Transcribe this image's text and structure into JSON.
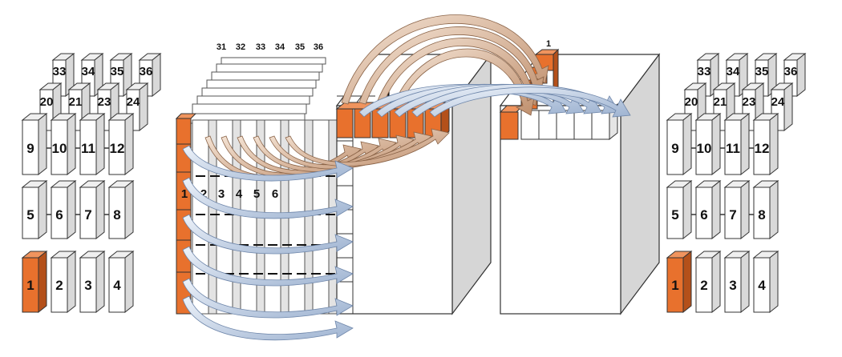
{
  "colors": {
    "highlight": "#E8712D",
    "highlight_dark": "#B4501A",
    "block_face": "#FFFFFF",
    "block_side": "#D9D9D9",
    "block_top": "#EFEFEF",
    "outline": "#333333",
    "arrow_brown": "#C79A7B",
    "arrow_brown_light": "#F0DCCB",
    "arrow_blue": "#A9BCD6",
    "arrow_blue_light": "#E6EEF8"
  },
  "left_cluster": {
    "row3_labels": [
      "33",
      "34",
      "35",
      "36"
    ],
    "row2_labels": [
      "20",
      "21",
      "23",
      "24"
    ],
    "row1_labels": [
      "9",
      "10",
      "11",
      "12"
    ],
    "row0_labels": [
      "5",
      "6",
      "7",
      "8"
    ],
    "rowA_labels": [
      "1",
      "2",
      "3",
      "4"
    ]
  },
  "right_cluster": {
    "row3_labels": [
      "33",
      "34",
      "35",
      "36"
    ],
    "row2_labels": [
      "20",
      "21",
      "23",
      "24"
    ],
    "row1_labels": [
      "9",
      "10",
      "11",
      "12"
    ],
    "row0_labels": [
      "5",
      "6",
      "7",
      "8"
    ],
    "rowA_labels": [
      "1",
      "2",
      "3",
      "4"
    ]
  },
  "grid_block": {
    "top_labels": [
      "31",
      "32",
      "33",
      "34",
      "35",
      "36"
    ],
    "front_labels": [
      "1",
      "2",
      "3",
      "4",
      "5",
      "6"
    ]
  },
  "cube_left": {
    "label": "1"
  },
  "cube_right": {
    "label": "1"
  }
}
